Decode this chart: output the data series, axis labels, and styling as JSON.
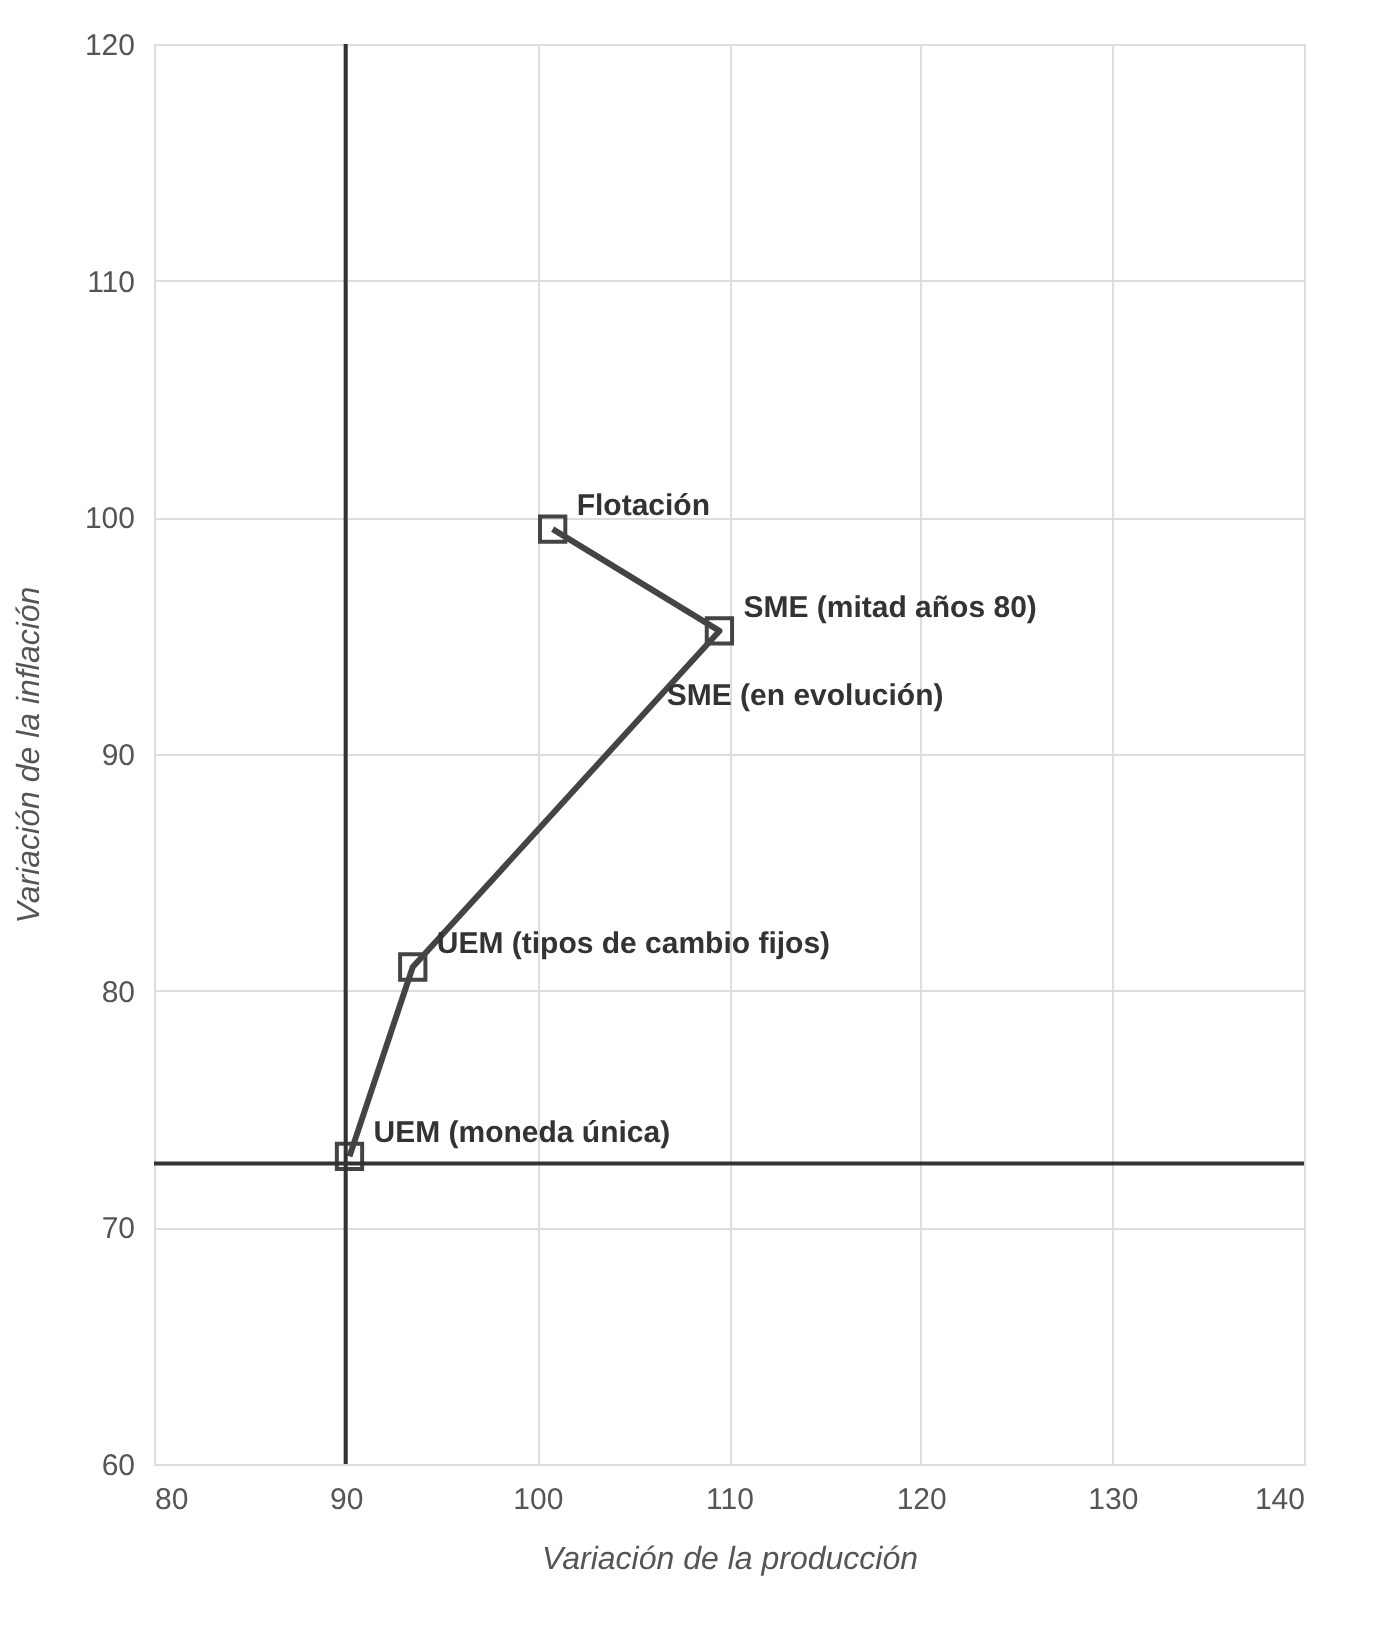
{
  "chart_data": {
    "type": "line",
    "xlabel": "Variación de la producción",
    "ylabel": "Variación de la inflación",
    "x": [
      100.8,
      109.5,
      93.5,
      90.2
    ],
    "series": [
      {
        "color": "#444444",
        "values": [
          99.5,
          95.2,
          81,
          73
        ]
      }
    ],
    "marker": "square",
    "line_style": "solid",
    "grid": true,
    "xlim": [
      80,
      140
    ],
    "xticks": [
      80,
      90,
      100,
      110,
      120,
      130,
      140
    ],
    "ylim": [
      60,
      120
    ],
    "yticks": [
      60,
      70,
      80,
      90,
      100,
      110,
      120
    ],
    "ref_lines": [
      {
        "axis": "x",
        "value": 90,
        "color": "#333333"
      },
      {
        "axis": "y",
        "value": 72.7,
        "color": "#333333"
      }
    ],
    "annotations": [
      {
        "text": "Flotación",
        "x": 100.8,
        "y": 99.5
      },
      {
        "text": "SME (mitad años 80)",
        "x": 109.5,
        "y": 95.2
      },
      {
        "text": "SME (en evolución)",
        "x": 105.5,
        "y": 91.5
      },
      {
        "text": "UEM (tipos de cambio fijos)",
        "x": 93.5,
        "y": 81
      },
      {
        "text": "UEM (moneda única)",
        "x": 90.2,
        "y": 73
      }
    ]
  }
}
